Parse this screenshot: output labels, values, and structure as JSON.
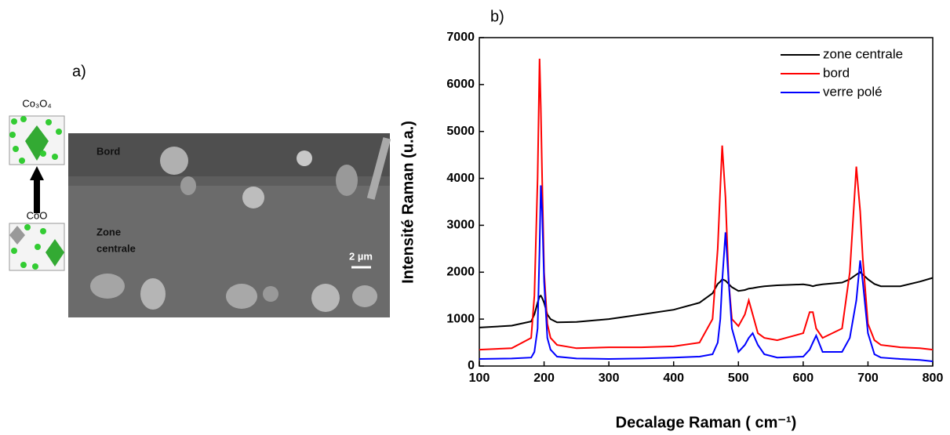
{
  "figure": {
    "panel_a": "a)",
    "panel_b": "b)"
  },
  "structures": {
    "top": "Co₃O₄",
    "bottom": "CoO"
  },
  "sem": {
    "edge": "Bord",
    "center": [
      "Zone",
      "centrale"
    ],
    "scale": "2 µm"
  },
  "chart_data": {
    "type": "line",
    "xlabel": "Decalage Raman ( cm⁻¹)",
    "ylabel": "Intensité Raman (u.a.)",
    "xlim": [
      100,
      800
    ],
    "ylim": [
      0,
      7000
    ],
    "xticks": [
      100,
      200,
      300,
      400,
      500,
      600,
      700,
      800
    ],
    "yticks": [
      0,
      1000,
      2000,
      3000,
      4000,
      5000,
      6000,
      7000
    ],
    "legend": "upper right",
    "x": [
      100,
      150,
      180,
      185,
      190,
      193,
      195,
      197,
      200,
      205,
      210,
      220,
      250,
      300,
      350,
      400,
      440,
      460,
      468,
      472,
      475,
      480,
      485,
      490,
      500,
      510,
      516,
      522,
      530,
      540,
      560,
      600,
      610,
      615,
      620,
      630,
      660,
      672,
      682,
      688,
      692,
      700,
      710,
      720,
      750,
      780,
      800
    ],
    "series": [
      {
        "name": "zone centrale",
        "color": "#000000",
        "values": [
          820,
          860,
          950,
          1100,
          1350,
          1480,
          1500,
          1450,
          1350,
          1100,
          1000,
          930,
          940,
          1000,
          1100,
          1200,
          1350,
          1550,
          1750,
          1800,
          1850,
          1820,
          1750,
          1680,
          1600,
          1620,
          1650,
          1660,
          1680,
          1700,
          1720,
          1740,
          1720,
          1700,
          1720,
          1740,
          1780,
          1850,
          1950,
          2000,
          1950,
          1850,
          1750,
          1700,
          1700,
          1800,
          1880
        ]
      },
      {
        "name": "bord",
        "color": "#ff0000",
        "values": [
          350,
          380,
          600,
          1500,
          4000,
          6550,
          5500,
          4000,
          2000,
          900,
          600,
          450,
          380,
          400,
          400,
          420,
          500,
          1000,
          2500,
          3800,
          4700,
          3600,
          1800,
          1000,
          850,
          1100,
          1400,
          1100,
          700,
          600,
          550,
          700,
          1150,
          1150,
          800,
          600,
          800,
          2000,
          4250,
          3300,
          2300,
          900,
          550,
          450,
          400,
          380,
          350
        ]
      },
      {
        "name": "verre polé",
        "color": "#0000ff",
        "values": [
          150,
          160,
          180,
          300,
          800,
          2500,
          3850,
          3300,
          1800,
          600,
          350,
          200,
          160,
          150,
          160,
          180,
          200,
          250,
          500,
          1000,
          1800,
          2850,
          1800,
          800,
          300,
          450,
          600,
          700,
          450,
          250,
          180,
          200,
          350,
          500,
          650,
          300,
          300,
          600,
          1400,
          2250,
          1800,
          700,
          250,
          180,
          150,
          130,
          100
        ]
      }
    ]
  }
}
